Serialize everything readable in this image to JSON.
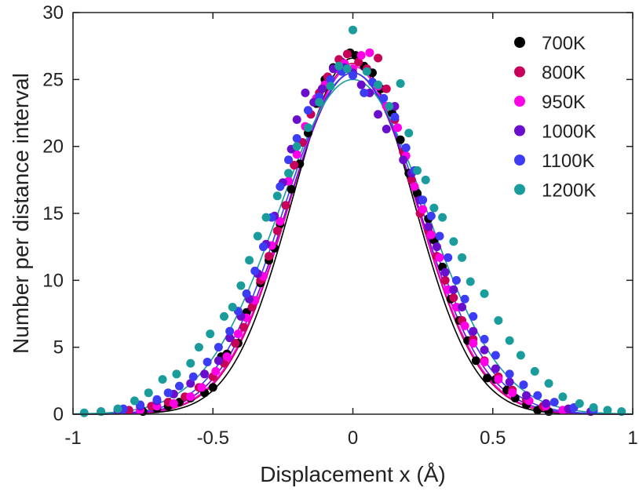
{
  "chart_data": {
    "type": "scatter",
    "xlabel": "Displacement x (Å)",
    "ylabel": "Number per distance interval",
    "xlim": [
      -1,
      1
    ],
    "ylim": [
      0,
      30
    ],
    "xticks": [
      -1,
      -0.5,
      0,
      0.5,
      1
    ],
    "xtick_labels": [
      "-1",
      "-0.5",
      "0",
      "0.5",
      "1"
    ],
    "yticks": [
      0,
      5,
      10,
      15,
      20,
      25,
      30
    ],
    "ytick_labels": [
      "0",
      "5",
      "10",
      "15",
      "20",
      "25",
      "30"
    ],
    "grid": false,
    "legend_position": "top-right",
    "fit_curves": "gaussian",
    "series": [
      {
        "name": "700K",
        "color": "#000000",
        "fit": {
          "amplitude": 26.6,
          "sigma": 0.215
        },
        "points": [
          [
            -0.75,
            0.2
          ],
          [
            -0.7,
            0.4
          ],
          [
            -0.66,
            0.6
          ],
          [
            -0.62,
            0.9
          ],
          [
            -0.58,
            1.2
          ],
          [
            -0.53,
            1.6
          ],
          [
            -0.5,
            2.0
          ],
          [
            -0.47,
            4.3
          ],
          [
            -0.45,
            4.5
          ],
          [
            -0.41,
            5.3
          ],
          [
            -0.38,
            7.6
          ],
          [
            -0.35,
            8.5
          ],
          [
            -0.33,
            9.8
          ],
          [
            -0.3,
            11.5
          ],
          [
            -0.28,
            12.4
          ],
          [
            -0.26,
            14.2
          ],
          [
            -0.22,
            16.8
          ],
          [
            -0.19,
            18.7
          ],
          [
            -0.16,
            21.0
          ],
          [
            -0.13,
            23.2
          ],
          [
            -0.1,
            25.0
          ],
          [
            -0.07,
            25.9
          ],
          [
            -0.04,
            26.3
          ],
          [
            -0.01,
            27.0
          ],
          [
            0.01,
            26.8
          ],
          [
            0.04,
            26.0
          ],
          [
            0.07,
            25.5
          ],
          [
            0.1,
            24.3
          ],
          [
            0.14,
            22.5
          ],
          [
            0.17,
            20.5
          ],
          [
            0.2,
            18.0
          ],
          [
            0.23,
            16.5
          ],
          [
            0.27,
            14.6
          ],
          [
            0.29,
            13.0
          ],
          [
            0.32,
            11.0
          ],
          [
            0.35,
            8.6
          ],
          [
            0.38,
            7.0
          ],
          [
            0.41,
            5.5
          ],
          [
            0.44,
            4.0
          ],
          [
            0.48,
            2.7
          ],
          [
            0.51,
            2.6
          ],
          [
            0.55,
            1.8
          ],
          [
            0.58,
            1.2
          ],
          [
            0.62,
            0.7
          ],
          [
            0.66,
            0.3
          ],
          [
            0.7,
            0.2
          ]
        ]
      },
      {
        "name": "800K",
        "color": "#c8005a",
        "fit": {
          "amplitude": 26.2,
          "sigma": 0.225
        },
        "points": [
          [
            -0.8,
            0.3
          ],
          [
            -0.72,
            0.6
          ],
          [
            -0.66,
            0.9
          ],
          [
            -0.6,
            1.3
          ],
          [
            -0.55,
            2.0
          ],
          [
            -0.5,
            2.8
          ],
          [
            -0.46,
            3.8
          ],
          [
            -0.42,
            5.3
          ],
          [
            -0.39,
            6.5
          ],
          [
            -0.36,
            8.0
          ],
          [
            -0.33,
            10.0
          ],
          [
            -0.3,
            11.8
          ],
          [
            -0.27,
            13.7
          ],
          [
            -0.24,
            15.6
          ],
          [
            -0.21,
            18.6
          ],
          [
            -0.18,
            20.3
          ],
          [
            -0.15,
            22.4
          ],
          [
            -0.12,
            24.0
          ],
          [
            -0.09,
            25.2
          ],
          [
            -0.05,
            26.5
          ],
          [
            -0.02,
            26.9
          ],
          [
            0.02,
            26.3
          ],
          [
            0.05,
            25.8
          ],
          [
            0.09,
            26.6
          ],
          [
            0.12,
            24.3
          ],
          [
            0.15,
            22.0
          ],
          [
            0.18,
            19.6
          ],
          [
            0.21,
            17.5
          ],
          [
            0.24,
            15.0
          ],
          [
            0.27,
            13.7
          ],
          [
            0.3,
            11.8
          ],
          [
            0.33,
            10.0
          ],
          [
            0.36,
            8.7
          ],
          [
            0.39,
            7.0
          ],
          [
            0.43,
            5.6
          ],
          [
            0.47,
            4.0
          ],
          [
            0.52,
            2.8
          ],
          [
            0.57,
            1.8
          ],
          [
            0.62,
            1.1
          ],
          [
            0.68,
            0.6
          ],
          [
            0.75,
            0.3
          ]
        ]
      },
      {
        "name": "950K",
        "color": "#ff00e6",
        "fit": {
          "amplitude": 26.0,
          "sigma": 0.228
        },
        "points": [
          [
            -0.76,
            0.3
          ],
          [
            -0.7,
            0.6
          ],
          [
            -0.64,
            0.8
          ],
          [
            -0.58,
            1.3
          ],
          [
            -0.54,
            2.0
          ],
          [
            -0.49,
            3.2
          ],
          [
            -0.45,
            4.3
          ],
          [
            -0.41,
            6.0
          ],
          [
            -0.38,
            7.2
          ],
          [
            -0.35,
            8.5
          ],
          [
            -0.32,
            10.3
          ],
          [
            -0.29,
            12.6
          ],
          [
            -0.26,
            14.4
          ],
          [
            -0.23,
            17.4
          ],
          [
            -0.2,
            19.4
          ],
          [
            -0.17,
            21.5
          ],
          [
            -0.13,
            23.6
          ],
          [
            -0.1,
            24.6
          ],
          [
            -0.06,
            25.8
          ],
          [
            -0.03,
            26.2
          ],
          [
            0.0,
            25.8
          ],
          [
            0.03,
            26.8
          ],
          [
            0.06,
            27.0
          ],
          [
            0.09,
            24.5
          ],
          [
            0.12,
            23.0
          ],
          [
            0.16,
            21.4
          ],
          [
            0.19,
            19.3
          ],
          [
            0.22,
            17.0
          ],
          [
            0.25,
            15.3
          ],
          [
            0.28,
            13.4
          ],
          [
            0.31,
            11.7
          ],
          [
            0.34,
            9.3
          ],
          [
            0.37,
            8.0
          ],
          [
            0.4,
            6.6
          ],
          [
            0.43,
            5.3
          ],
          [
            0.47,
            3.9
          ],
          [
            0.52,
            2.6
          ],
          [
            0.57,
            1.6
          ],
          [
            0.63,
            1.0
          ],
          [
            0.69,
            0.6
          ],
          [
            0.75,
            0.3
          ]
        ]
      },
      {
        "name": "1000K",
        "color": "#6a0dcc",
        "fit": {
          "amplitude": 25.5,
          "sigma": 0.235
        },
        "points": [
          [
            -0.84,
            0.3
          ],
          [
            -0.76,
            0.6
          ],
          [
            -0.7,
            1.0
          ],
          [
            -0.64,
            1.5
          ],
          [
            -0.58,
            2.3
          ],
          [
            -0.53,
            3.0
          ],
          [
            -0.48,
            4.0
          ],
          [
            -0.44,
            5.7
          ],
          [
            -0.4,
            7.3
          ],
          [
            -0.37,
            8.6
          ],
          [
            -0.34,
            10.5
          ],
          [
            -0.31,
            12.7
          ],
          [
            -0.28,
            14.8
          ],
          [
            -0.25,
            17.3
          ],
          [
            -0.22,
            19.8
          ],
          [
            -0.2,
            22.0
          ],
          [
            -0.17,
            24.0
          ],
          [
            -0.14,
            23.3
          ],
          [
            -0.11,
            24.3
          ],
          [
            -0.07,
            25.8
          ],
          [
            -0.03,
            25.9
          ],
          [
            0.0,
            25.5
          ],
          [
            0.03,
            24.6
          ],
          [
            0.06,
            24.0
          ],
          [
            0.09,
            22.4
          ],
          [
            0.12,
            21.3
          ],
          [
            0.15,
            23.0
          ],
          [
            0.18,
            19.0
          ],
          [
            0.21,
            18.0
          ],
          [
            0.24,
            16.0
          ],
          [
            0.27,
            14.0
          ],
          [
            0.3,
            12.5
          ],
          [
            0.33,
            10.6
          ],
          [
            0.36,
            9.3
          ],
          [
            0.39,
            8.0
          ],
          [
            0.43,
            6.2
          ],
          [
            0.47,
            4.8
          ],
          [
            0.51,
            3.4
          ],
          [
            0.56,
            2.4
          ],
          [
            0.62,
            1.4
          ],
          [
            0.69,
            0.8
          ],
          [
            0.77,
            0.4
          ],
          [
            0.85,
            0.2
          ]
        ]
      },
      {
        "name": "1100K",
        "color": "#3c3cf5",
        "fit": {
          "amplitude": 25.5,
          "sigma": 0.245
        },
        "points": [
          [
            -0.9,
            0.2
          ],
          [
            -0.82,
            0.4
          ],
          [
            -0.76,
            0.7
          ],
          [
            -0.7,
            1.1
          ],
          [
            -0.66,
            1.6
          ],
          [
            -0.62,
            2.1
          ],
          [
            -0.57,
            2.8
          ],
          [
            -0.52,
            3.9
          ],
          [
            -0.48,
            5.0
          ],
          [
            -0.44,
            6.2
          ],
          [
            -0.41,
            7.7
          ],
          [
            -0.38,
            9.0
          ],
          [
            -0.35,
            10.7
          ],
          [
            -0.32,
            12.5
          ],
          [
            -0.29,
            14.7
          ],
          [
            -0.26,
            17.0
          ],
          [
            -0.23,
            19.0
          ],
          [
            -0.2,
            20.6
          ],
          [
            -0.16,
            22.7
          ],
          [
            -0.12,
            23.7
          ],
          [
            -0.08,
            25.0
          ],
          [
            -0.04,
            25.6
          ],
          [
            0.0,
            25.3
          ],
          [
            0.04,
            24.0
          ],
          [
            0.07,
            24.8
          ],
          [
            0.11,
            23.6
          ],
          [
            0.15,
            22.2
          ],
          [
            0.19,
            19.9
          ],
          [
            0.22,
            18.2
          ],
          [
            0.25,
            16.0
          ],
          [
            0.28,
            14.8
          ],
          [
            0.31,
            13.3
          ],
          [
            0.34,
            11.7
          ],
          [
            0.37,
            10.0
          ],
          [
            0.4,
            8.6
          ],
          [
            0.43,
            7.3
          ],
          [
            0.47,
            5.6
          ],
          [
            0.51,
            4.4
          ],
          [
            0.56,
            3.0
          ],
          [
            0.61,
            2.2
          ],
          [
            0.66,
            1.4
          ],
          [
            0.72,
            0.9
          ],
          [
            0.79,
            0.5
          ],
          [
            0.86,
            0.3
          ]
        ]
      },
      {
        "name": "1200K",
        "color": "#1a9c9c",
        "fit": {
          "amplitude": 25.0,
          "sigma": 0.265
        },
        "points": [
          [
            -0.96,
            0.1
          ],
          [
            -0.9,
            0.2
          ],
          [
            -0.84,
            0.4
          ],
          [
            -0.78,
            1.0
          ],
          [
            -0.73,
            1.6
          ],
          [
            -0.68,
            2.6
          ],
          [
            -0.63,
            3.0
          ],
          [
            -0.58,
            3.8
          ],
          [
            -0.55,
            5.0
          ],
          [
            -0.51,
            6.0
          ],
          [
            -0.46,
            7.3
          ],
          [
            -0.43,
            8.0
          ],
          [
            -0.4,
            9.6
          ],
          [
            -0.37,
            11.5
          ],
          [
            -0.34,
            13.3
          ],
          [
            -0.31,
            14.7
          ],
          [
            -0.27,
            16.3
          ],
          [
            -0.23,
            18.0
          ],
          [
            -0.2,
            20.0
          ],
          [
            -0.16,
            21.4
          ],
          [
            -0.12,
            23.3
          ],
          [
            -0.08,
            24.5
          ],
          [
            -0.05,
            26.0
          ],
          [
            -0.02,
            25.8
          ],
          [
            0.0,
            28.7
          ],
          [
            0.05,
            25.6
          ],
          [
            0.09,
            24.6
          ],
          [
            0.13,
            23.0
          ],
          [
            0.17,
            24.7
          ],
          [
            0.2,
            21.0
          ],
          [
            0.23,
            18.2
          ],
          [
            0.26,
            17.5
          ],
          [
            0.29,
            15.4
          ],
          [
            0.32,
            14.7
          ],
          [
            0.36,
            12.9
          ],
          [
            0.39,
            11.7
          ],
          [
            0.42,
            9.9
          ],
          [
            0.47,
            9.0
          ],
          [
            0.52,
            7.0
          ],
          [
            0.56,
            5.5
          ],
          [
            0.6,
            4.4
          ],
          [
            0.65,
            3.2
          ],
          [
            0.7,
            2.3
          ],
          [
            0.75,
            1.3
          ],
          [
            0.81,
            0.8
          ],
          [
            0.86,
            0.5
          ],
          [
            0.91,
            0.3
          ],
          [
            0.96,
            0.2
          ]
        ]
      }
    ]
  }
}
